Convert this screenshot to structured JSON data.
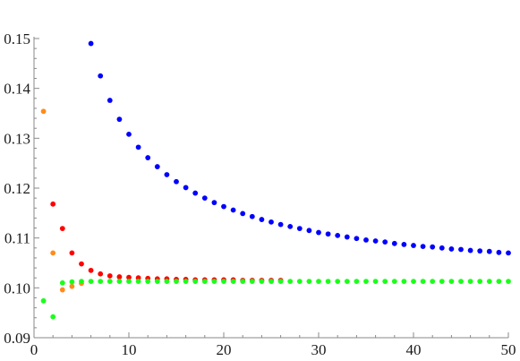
{
  "chart_data": {
    "type": "scatter",
    "title": "",
    "xlabel": "",
    "ylabel": "",
    "xlim": [
      0,
      50
    ],
    "ylim": [
      0.09,
      0.15
    ],
    "grid": false,
    "legend": "none",
    "x_ticks": [
      0,
      10,
      20,
      30,
      40,
      50
    ],
    "x_tick_labels": [
      "0",
      "10",
      "20",
      "30",
      "40",
      "50"
    ],
    "y_ticks": [
      0.09,
      0.1,
      0.11,
      0.12,
      0.13,
      0.14,
      0.15
    ],
    "y_tick_labels": [
      "0.09",
      "0.10",
      "0.11",
      "0.12",
      "0.13",
      "0.14",
      "0.15"
    ],
    "series": [
      {
        "color": "#0000ff",
        "points": [
          [
            6,
            0.149
          ],
          [
            7,
            0.1425
          ],
          [
            8,
            0.1376
          ],
          [
            9,
            0.1338
          ],
          [
            10,
            0.1308
          ],
          [
            11,
            0.1282
          ],
          [
            12,
            0.1261
          ],
          [
            13,
            0.1243
          ],
          [
            14,
            0.1227
          ],
          [
            15,
            0.1213
          ],
          [
            16,
            0.1201
          ],
          [
            17,
            0.119
          ],
          [
            18,
            0.118
          ],
          [
            19,
            0.1171
          ],
          [
            20,
            0.1163
          ],
          [
            21,
            0.1156
          ],
          [
            22,
            0.1149
          ],
          [
            23,
            0.1143
          ],
          [
            24,
            0.1137
          ],
          [
            25,
            0.1132
          ],
          [
            26,
            0.1127
          ],
          [
            27,
            0.1123
          ],
          [
            28,
            0.1119
          ],
          [
            29,
            0.1115
          ],
          [
            30,
            0.1111
          ],
          [
            31,
            0.1108
          ],
          [
            32,
            0.1105
          ],
          [
            33,
            0.1102
          ],
          [
            34,
            0.1099
          ],
          [
            35,
            0.1096
          ],
          [
            36,
            0.1094
          ],
          [
            37,
            0.1092
          ],
          [
            38,
            0.1089
          ],
          [
            39,
            0.1087
          ],
          [
            40,
            0.1085
          ],
          [
            41,
            0.1083
          ],
          [
            42,
            0.1082
          ],
          [
            43,
            0.108
          ],
          [
            44,
            0.1078
          ],
          [
            45,
            0.1077
          ],
          [
            46,
            0.1075
          ],
          [
            47,
            0.1074
          ],
          [
            48,
            0.1073
          ],
          [
            49,
            0.1071
          ],
          [
            50,
            0.107
          ]
        ]
      },
      {
        "color": "#ff0000",
        "points": [
          [
            2,
            0.1168
          ],
          [
            3,
            0.1119
          ],
          [
            4,
            0.107
          ],
          [
            5,
            0.1048
          ],
          [
            6,
            0.1035
          ],
          [
            7,
            0.1028
          ],
          [
            8,
            0.1024
          ],
          [
            9,
            0.1022
          ],
          [
            10,
            0.1021
          ],
          [
            11,
            0.102
          ],
          [
            12,
            0.1019
          ],
          [
            13,
            0.1018
          ],
          [
            14,
            0.1018
          ],
          [
            15,
            0.1017
          ],
          [
            16,
            0.1017
          ],
          [
            17,
            0.1016
          ],
          [
            18,
            0.1016
          ],
          [
            19,
            0.1016
          ],
          [
            20,
            0.1016
          ],
          [
            21,
            0.1016
          ],
          [
            22,
            0.1015
          ],
          [
            23,
            0.1015
          ],
          [
            24,
            0.1015
          ],
          [
            25,
            0.1015
          ],
          [
            26,
            0.1015
          ]
        ]
      },
      {
        "color": "#ff8c1a",
        "points": [
          [
            1,
            0.1354
          ],
          [
            2,
            0.107
          ],
          [
            3,
            0.0996
          ],
          [
            4,
            0.1003
          ],
          [
            5,
            0.1009
          ]
        ]
      },
      {
        "color": "#1aff1a",
        "points": [
          [
            1,
            0.0974
          ],
          [
            2,
            0.0942
          ],
          [
            3,
            0.101
          ],
          [
            4,
            0.1012
          ],
          [
            5,
            0.1013
          ],
          [
            6,
            0.1013
          ],
          [
            7,
            0.1013
          ],
          [
            8,
            0.1013
          ],
          [
            9,
            0.1013
          ],
          [
            10,
            0.1013
          ],
          [
            11,
            0.1013
          ],
          [
            12,
            0.1013
          ],
          [
            13,
            0.1013
          ],
          [
            14,
            0.1013
          ],
          [
            15,
            0.1013
          ],
          [
            16,
            0.1013
          ],
          [
            17,
            0.1013
          ],
          [
            18,
            0.1013
          ],
          [
            19,
            0.1013
          ],
          [
            20,
            0.1013
          ],
          [
            21,
            0.1013
          ],
          [
            22,
            0.1013
          ],
          [
            23,
            0.1013
          ],
          [
            24,
            0.1013
          ],
          [
            25,
            0.1013
          ],
          [
            26,
            0.1013
          ],
          [
            27,
            0.1013
          ],
          [
            28,
            0.1013
          ],
          [
            29,
            0.1013
          ],
          [
            30,
            0.1013
          ],
          [
            31,
            0.1013
          ],
          [
            32,
            0.1013
          ],
          [
            33,
            0.1013
          ],
          [
            34,
            0.1013
          ],
          [
            35,
            0.1013
          ],
          [
            36,
            0.1013
          ],
          [
            37,
            0.1013
          ],
          [
            38,
            0.1013
          ],
          [
            39,
            0.1013
          ],
          [
            40,
            0.1013
          ],
          [
            41,
            0.1013
          ],
          [
            42,
            0.1013
          ],
          [
            43,
            0.1013
          ],
          [
            44,
            0.1013
          ],
          [
            45,
            0.1013
          ],
          [
            46,
            0.1013
          ],
          [
            47,
            0.1013
          ],
          [
            48,
            0.1013
          ],
          [
            49,
            0.1013
          ],
          [
            50,
            0.1013
          ]
        ]
      }
    ]
  }
}
